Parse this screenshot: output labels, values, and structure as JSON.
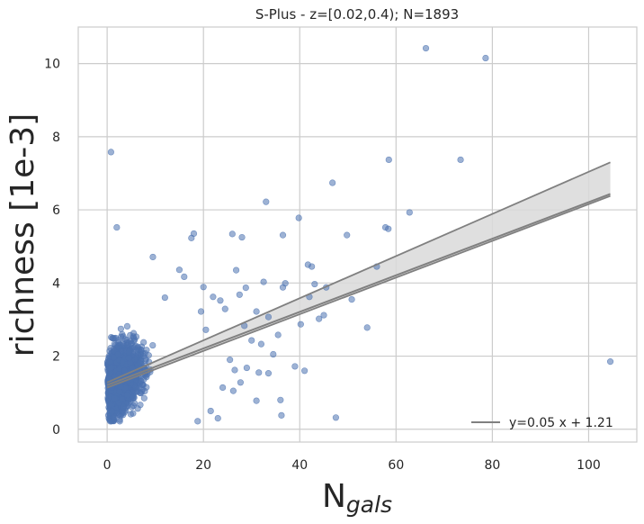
{
  "chart_data": {
    "type": "scatter",
    "title": "S-Plus - z=[0.02,0.4); N=1893",
    "xlabel_main": "N",
    "xlabel_sub": "gals",
    "ylabel": "richness [1e-3]",
    "xlim": [
      -6,
      110
    ],
    "ylim": [
      -0.35,
      11.0
    ],
    "xticks": [
      0,
      20,
      40,
      60,
      80,
      100
    ],
    "yticks": [
      0,
      2,
      4,
      6,
      8,
      10
    ],
    "grid": true,
    "legend_position": "lower-right",
    "colors": {
      "points": "#4c72b0",
      "fit_line": "#808080",
      "band": "#d9d9d9",
      "grid": "#cccccc",
      "axes_edge": "#cccccc"
    },
    "fit": {
      "slope": 0.05,
      "intercept": 1.21,
      "x_range": [
        0,
        104.5
      ],
      "upper_at_end": 7.3,
      "lower_at_end": 6.38,
      "upper_at_start": 1.28,
      "lower_at_start": 1.14,
      "legend_label": "y=0.05 x + 1.21"
    },
    "series": [
      {
        "points": [
          [
            0.8,
            7.58
          ],
          [
            2,
            5.52
          ],
          [
            66.2,
            10.42
          ],
          [
            78.6,
            10.15
          ],
          [
            104.5,
            1.85
          ],
          [
            58.5,
            7.37
          ],
          [
            73.4,
            7.37
          ],
          [
            46.8,
            6.74
          ],
          [
            62.8,
            5.93
          ],
          [
            33,
            6.22
          ],
          [
            39.8,
            5.78
          ],
          [
            57.8,
            5.52
          ],
          [
            58.4,
            5.48
          ],
          [
            49.8,
            5.31
          ],
          [
            36.5,
            5.31
          ],
          [
            26,
            5.34
          ],
          [
            28,
            5.25
          ],
          [
            18,
            5.35
          ],
          [
            17.5,
            5.23
          ],
          [
            9.5,
            4.71
          ],
          [
            56,
            4.45
          ],
          [
            41.7,
            4.5
          ],
          [
            42.5,
            4.45
          ],
          [
            43.1,
            3.97
          ],
          [
            45.5,
            3.88
          ],
          [
            54,
            2.78
          ],
          [
            47.5,
            0.32
          ],
          [
            41,
            1.6
          ],
          [
            39,
            1.72
          ],
          [
            36.2,
            0.38
          ],
          [
            36,
            0.8
          ],
          [
            31,
            0.78
          ],
          [
            33.5,
            1.53
          ],
          [
            31.5,
            1.55
          ],
          [
            40.2,
            2.87
          ],
          [
            44,
            3.02
          ],
          [
            45,
            3.12
          ],
          [
            50.8,
            3.55
          ],
          [
            34.5,
            2.05
          ],
          [
            30,
            2.43
          ],
          [
            26.8,
            4.35
          ],
          [
            15,
            4.36
          ],
          [
            16,
            4.17
          ],
          [
            12,
            3.6
          ],
          [
            20,
            3.89
          ],
          [
            22,
            3.62
          ],
          [
            28.8,
            3.87
          ],
          [
            32.5,
            4.03
          ],
          [
            36.5,
            3.88
          ],
          [
            37,
            3.99
          ],
          [
            42,
            3.62
          ],
          [
            26.2,
            1.05
          ],
          [
            27.7,
            1.28
          ],
          [
            23,
            0.3
          ],
          [
            18.8,
            0.22
          ],
          [
            21.5,
            0.5
          ],
          [
            24,
            1.14
          ],
          [
            26.5,
            1.62
          ],
          [
            29,
            1.68
          ],
          [
            25.5,
            1.9
          ],
          [
            32,
            2.33
          ],
          [
            31,
            3.22
          ],
          [
            23.5,
            3.52
          ],
          [
            27.5,
            3.68
          ],
          [
            19.5,
            3.22
          ],
          [
            24.5,
            3.29
          ],
          [
            20.5,
            2.72
          ],
          [
            28.5,
            2.83
          ],
          [
            33.5,
            3.07
          ],
          [
            35.5,
            2.58
          ]
        ]
      }
    ]
  }
}
